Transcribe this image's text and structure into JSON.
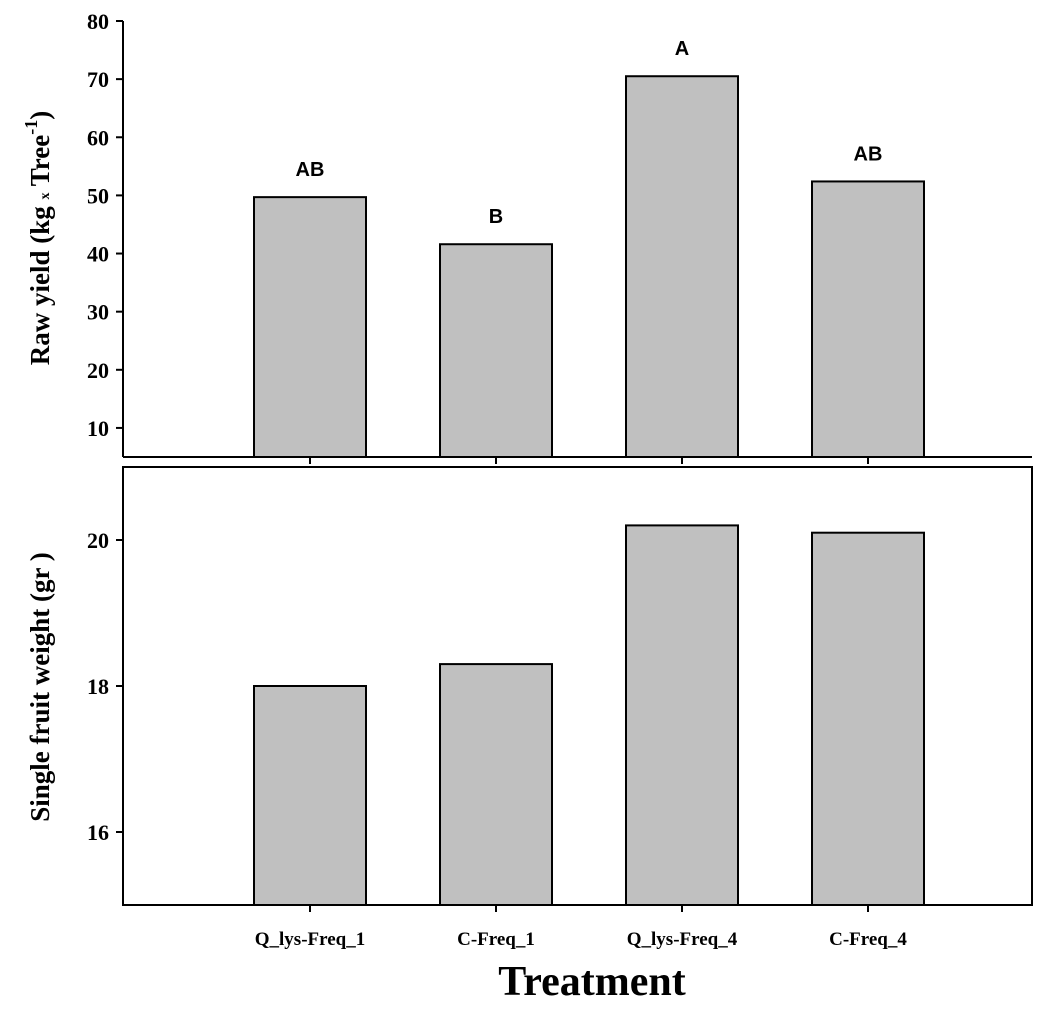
{
  "chart_data": [
    {
      "type": "bar",
      "categories": [
        "Q_lys-Freq_1",
        "C-Freq_1",
        "Q_lys-Freq_4",
        "C-Freq_4"
      ],
      "values": [
        49.7,
        41.6,
        70.5,
        52.4
      ],
      "significance_labels": [
        "AB",
        "B",
        "A",
        "AB"
      ],
      "ylabel": "Raw yield (kg × Tree-1)",
      "ylabel_parts": {
        "main": "Raw yield (kg ",
        "times": "x",
        "tree": " Tree",
        "sup": "-1",
        "close": ")"
      },
      "ylim": [
        5,
        80
      ],
      "yticks": [
        10,
        20,
        30,
        40,
        50,
        60,
        70,
        80
      ],
      "bar_color": "#c0c0c0",
      "grid": false
    },
    {
      "type": "bar",
      "categories": [
        "Q_lys-Freq_1",
        "C-Freq_1",
        "Q_lys-Freq_4",
        "C-Freq_4"
      ],
      "values": [
        18.0,
        18.3,
        20.2,
        20.1
      ],
      "ylabel": "Single fruit weight (gr )",
      "ylim": [
        15,
        21
      ],
      "yticks": [
        16,
        18,
        20
      ],
      "bar_color": "#c0c0c0",
      "grid": false
    }
  ],
  "xlabel": "Treatment"
}
